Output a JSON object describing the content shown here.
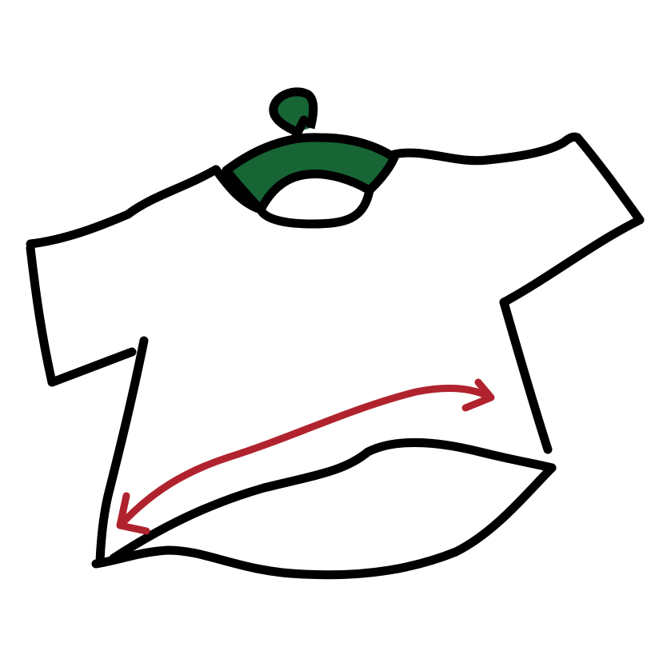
{
  "illustration": {
    "subject": "t-shirt-on-hanger",
    "icon": "shirt-width-measure-icon",
    "colors": {
      "outline": "#000000",
      "collar": "#176535",
      "arrow": "#b0232e",
      "background": "#ffffff"
    }
  }
}
